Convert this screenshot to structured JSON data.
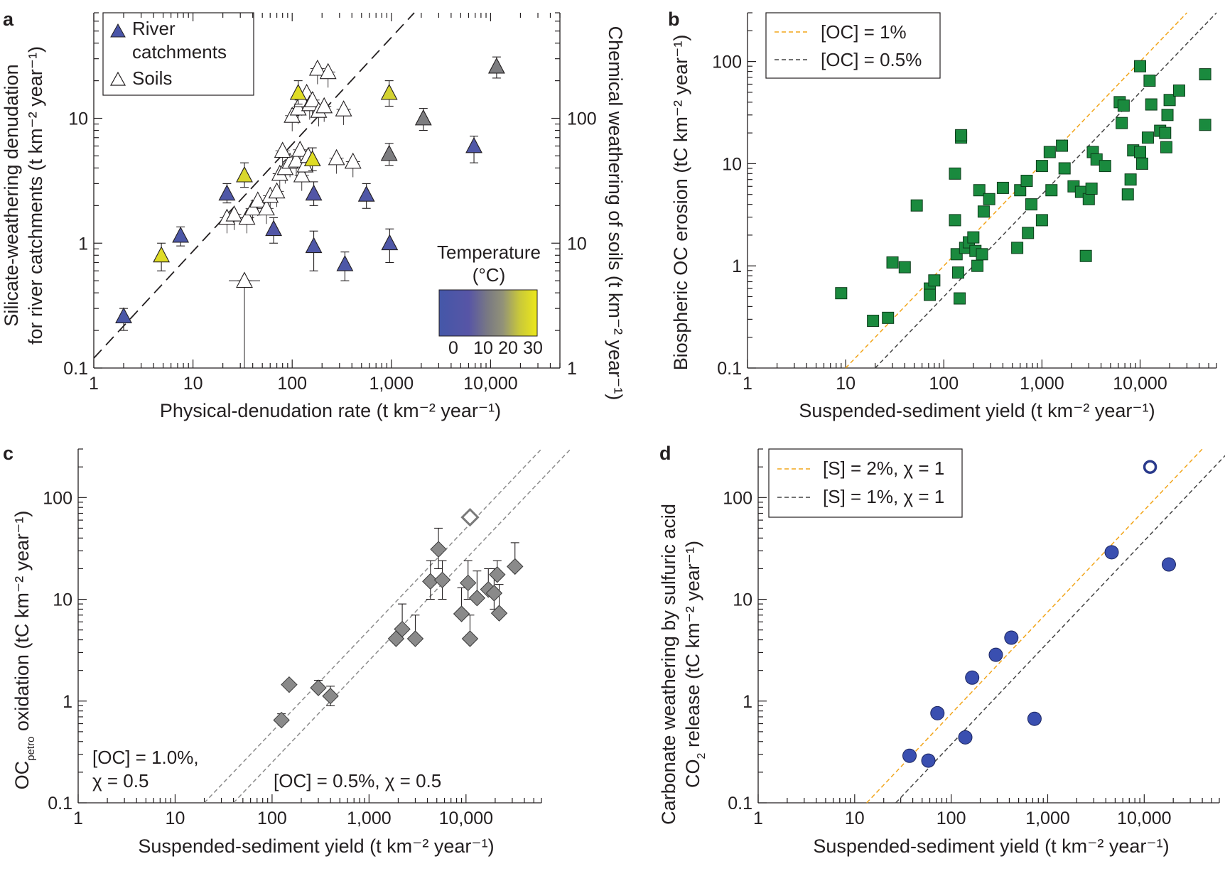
{
  "chart_data": [
    {
      "panel": "a",
      "type": "scatter",
      "xlabel": "Physical-denudation rate (t km⁻² year⁻¹)",
      "ylabel_left": [
        "Silicate-weathering denudation",
        "for river catchments (t km⁻² year⁻¹)"
      ],
      "ylabel_right": "Chemical weathering of soils (t km⁻² year⁻¹)",
      "x_scale": "log",
      "y_scale": "log",
      "xlim": [
        1,
        50000
      ],
      "ylim": [
        0.1,
        70
      ],
      "y2lim": [
        1,
        700
      ],
      "x_tick_labels": [
        "1",
        "10",
        "100",
        "1,000",
        "10,000"
      ],
      "y_tick_labels": [
        "0.1",
        "1",
        "10"
      ],
      "y2_tick_labels": [
        "1",
        "10",
        "100"
      ],
      "legend_position": "top-left",
      "legend": [
        {
          "label": [
            "River",
            "catchments"
          ],
          "marker": "filled triangle"
        },
        {
          "label": [
            "Soils"
          ],
          "marker": "open triangle"
        }
      ],
      "colorbar": {
        "title": [
          "Temperature",
          "(°C)"
        ],
        "tick_labels": [
          "0",
          "10",
          "20",
          "30"
        ],
        "colors": [
          "#4457a8",
          "#4c55a6",
          "#5e56a3",
          "#6f6f8c",
          "#8a8a86",
          "#a9a86a",
          "#cfcf2c",
          "#e6e215"
        ]
      },
      "reference_line": {
        "style": "dashed",
        "x": [
          1,
          1700
        ],
        "y": [
          0.12,
          70
        ]
      },
      "river_catchments": [
        {
          "x": 2,
          "y": 0.26,
          "temp_c": 2,
          "err": [
            0.2,
            0.3
          ]
        },
        {
          "x": 4.8,
          "y": 0.8,
          "temp_c": 28,
          "err": [
            0.6,
            1.0
          ]
        },
        {
          "x": 7.5,
          "y": 1.15,
          "temp_c": 3,
          "err": [
            0.95,
            1.35
          ]
        },
        {
          "x": 22,
          "y": 2.5,
          "temp_c": 4,
          "err": [
            2.1,
            3.0
          ]
        },
        {
          "x": 33,
          "y": 3.5,
          "temp_c": 27,
          "err": [
            2.8,
            4.4
          ]
        },
        {
          "x": 65,
          "y": 1.3,
          "temp_c": 5,
          "err": [
            1.0,
            1.6
          ]
        },
        {
          "x": 115,
          "y": 16,
          "temp_c": 28,
          "err": [
            13,
            20
          ]
        },
        {
          "x": 160,
          "y": 4.7,
          "temp_c": 28,
          "err": [
            3.8,
            5.8
          ]
        },
        {
          "x": 165,
          "y": 2.5,
          "temp_c": 5,
          "err": [
            2.0,
            3.1
          ]
        },
        {
          "x": 165,
          "y": 0.95,
          "temp_c": 4,
          "err": [
            0.6,
            1.25
          ]
        },
        {
          "x": 340,
          "y": 0.68,
          "temp_c": 3,
          "err": [
            0.5,
            0.85
          ]
        },
        {
          "x": 560,
          "y": 2.45,
          "temp_c": 4,
          "err": [
            1.9,
            3.0
          ]
        },
        {
          "x": 950,
          "y": 16,
          "temp_c": 26,
          "err": [
            12.5,
            20
          ]
        },
        {
          "x": 950,
          "y": 5.2,
          "temp_c": 12,
          "err": [
            4.2,
            6.3
          ]
        },
        {
          "x": 960,
          "y": 1.0,
          "temp_c": 4,
          "err": [
            0.7,
            1.3
          ]
        },
        {
          "x": 2100,
          "y": 10,
          "temp_c": 12,
          "err": [
            8,
            12
          ]
        },
        {
          "x": 6800,
          "y": 6,
          "temp_c": 4,
          "err": [
            4.4,
            7.2
          ]
        },
        {
          "x": 11500,
          "y": 26,
          "temp_c": 12,
          "err": [
            21,
            31
          ]
        }
      ],
      "soils_right_axis_units": [
        {
          "x": 33,
          "y": 5
        },
        {
          "x": 22,
          "y": 16
        },
        {
          "x": 26,
          "y": 17
        },
        {
          "x": 35,
          "y": 16
        },
        {
          "x": 40,
          "y": 19
        },
        {
          "x": 45,
          "y": 22
        },
        {
          "x": 55,
          "y": 19
        },
        {
          "x": 60,
          "y": 24
        },
        {
          "x": 70,
          "y": 26
        },
        {
          "x": 75,
          "y": 36
        },
        {
          "x": 85,
          "y": 40
        },
        {
          "x": 95,
          "y": 45
        },
        {
          "x": 110,
          "y": 46
        },
        {
          "x": 120,
          "y": 56
        },
        {
          "x": 125,
          "y": 35
        },
        {
          "x": 135,
          "y": 42
        },
        {
          "x": 145,
          "y": 50
        },
        {
          "x": 80,
          "y": 55
        },
        {
          "x": 100,
          "y": 105
        },
        {
          "x": 115,
          "y": 120
        },
        {
          "x": 125,
          "y": 140
        },
        {
          "x": 140,
          "y": 160
        },
        {
          "x": 150,
          "y": 130
        },
        {
          "x": 160,
          "y": 140
        },
        {
          "x": 185,
          "y": 115
        },
        {
          "x": 210,
          "y": 125
        },
        {
          "x": 180,
          "y": 250
        },
        {
          "x": 230,
          "y": 235
        },
        {
          "x": 330,
          "y": 118
        },
        {
          "x": 280,
          "y": 48
        },
        {
          "x": 410,
          "y": 45
        }
      ]
    },
    {
      "panel": "b",
      "type": "scatter",
      "xlabel": "Suspended-sediment yield (t km⁻² year⁻¹)",
      "ylabel": "Biospheric OC erosion (tC km⁻² year⁻¹)",
      "x_scale": "log",
      "y_scale": "log",
      "xlim": [
        1,
        60000
      ],
      "ylim": [
        0.1,
        300
      ],
      "x_tick_labels": [
        "1",
        "10",
        "100",
        "1,000",
        "10,000"
      ],
      "y_tick_labels": [
        "0.1",
        "1",
        "10",
        "100"
      ],
      "legend_position": "top-left",
      "lines": [
        {
          "label": "[OC] = 1%",
          "fraction": 0.01,
          "color": "#f2a51a",
          "style": "dashed"
        },
        {
          "label": "[OC] = 0.5%",
          "fraction": 0.005,
          "color": "#444444",
          "style": "dashed"
        }
      ],
      "marker_color": "#1a8a3e",
      "points": [
        {
          "x": 9,
          "y": 0.54
        },
        {
          "x": 19,
          "y": 0.29
        },
        {
          "x": 27,
          "y": 0.31
        },
        {
          "x": 30,
          "y": 1.08
        },
        {
          "x": 40,
          "y": 0.97
        },
        {
          "x": 53,
          "y": 3.9
        },
        {
          "x": 72,
          "y": 0.6
        },
        {
          "x": 72,
          "y": 0.52
        },
        {
          "x": 80,
          "y": 0.72
        },
        {
          "x": 130,
          "y": 8
        },
        {
          "x": 130,
          "y": 2.8
        },
        {
          "x": 135,
          "y": 1.3
        },
        {
          "x": 140,
          "y": 0.86
        },
        {
          "x": 145,
          "y": 0.48
        },
        {
          "x": 150,
          "y": 18
        },
        {
          "x": 150,
          "y": 19
        },
        {
          "x": 165,
          "y": 1.5
        },
        {
          "x": 180,
          "y": 1.7
        },
        {
          "x": 200,
          "y": 1.9
        },
        {
          "x": 210,
          "y": 1.4
        },
        {
          "x": 220,
          "y": 1.0
        },
        {
          "x": 230,
          "y": 5.5
        },
        {
          "x": 245,
          "y": 1.3
        },
        {
          "x": 255,
          "y": 3.4
        },
        {
          "x": 290,
          "y": 4.5
        },
        {
          "x": 400,
          "y": 5.8
        },
        {
          "x": 560,
          "y": 1.5
        },
        {
          "x": 600,
          "y": 5.5
        },
        {
          "x": 700,
          "y": 6.8
        },
        {
          "x": 720,
          "y": 2.1
        },
        {
          "x": 780,
          "y": 4.0
        },
        {
          "x": 1000,
          "y": 2.8
        },
        {
          "x": 1000,
          "y": 9.5
        },
        {
          "x": 1200,
          "y": 13
        },
        {
          "x": 1250,
          "y": 5.5
        },
        {
          "x": 1600,
          "y": 15
        },
        {
          "x": 1700,
          "y": 9
        },
        {
          "x": 2100,
          "y": 6
        },
        {
          "x": 2500,
          "y": 5.3
        },
        {
          "x": 2800,
          "y": 1.25
        },
        {
          "x": 3000,
          "y": 4.5
        },
        {
          "x": 3200,
          "y": 5.7
        },
        {
          "x": 3300,
          "y": 13
        },
        {
          "x": 3600,
          "y": 11
        },
        {
          "x": 4400,
          "y": 9.5
        },
        {
          "x": 6200,
          "y": 40
        },
        {
          "x": 6500,
          "y": 25
        },
        {
          "x": 6800,
          "y": 37
        },
        {
          "x": 7500,
          "y": 5
        },
        {
          "x": 8000,
          "y": 7
        },
        {
          "x": 8500,
          "y": 13.5
        },
        {
          "x": 10000,
          "y": 90
        },
        {
          "x": 10000,
          "y": 13
        },
        {
          "x": 10500,
          "y": 10
        },
        {
          "x": 12000,
          "y": 18
        },
        {
          "x": 12500,
          "y": 65
        },
        {
          "x": 13000,
          "y": 38
        },
        {
          "x": 16000,
          "y": 21
        },
        {
          "x": 18000,
          "y": 20
        },
        {
          "x": 18500,
          "y": 14.5
        },
        {
          "x": 19000,
          "y": 30
        },
        {
          "x": 20000,
          "y": 42
        },
        {
          "x": 25000,
          "y": 52
        },
        {
          "x": 46000,
          "y": 75
        },
        {
          "x": 46000,
          "y": 24
        }
      ]
    },
    {
      "panel": "c",
      "type": "scatter",
      "xlabel": "Suspended-sediment yield (t km⁻² year⁻¹)",
      "ylabel": {
        "main": "OC",
        "subscript": "petro",
        "rest": " oxidation (tC km⁻² year⁻¹)"
      },
      "x_scale": "log",
      "y_scale": "log",
      "xlim": [
        1,
        60000
      ],
      "ylim": [
        0.1,
        300
      ],
      "x_tick_labels": [
        "1",
        "10",
        "100",
        "1,000",
        "10,000"
      ],
      "y_tick_labels": [
        "0.1",
        "1",
        "10",
        "100"
      ],
      "lines": [
        {
          "label": [
            "[OC] = 1.0%,",
            "χ = 0.5"
          ],
          "coef": 0.005,
          "color": "#8c8c8c",
          "style": "dashed"
        },
        {
          "label": [
            "[OC] = 0.5%, χ = 0.5"
          ],
          "coef": 0.0025,
          "color": "#8c8c8c",
          "style": "dashed"
        }
      ],
      "marker_color": "#8a8a8a",
      "points": [
        {
          "x": 125,
          "y": 0.65,
          "err_hi": 0.75
        },
        {
          "x": 150,
          "y": 1.45
        },
        {
          "x": 300,
          "y": 1.35,
          "err_hi": 1.6
        },
        {
          "x": 400,
          "y": 1.12,
          "err_lo": 0.9,
          "err_hi": 1.4
        },
        {
          "x": 1900,
          "y": 4.1
        },
        {
          "x": 2200,
          "y": 5.1,
          "err_hi": 9
        },
        {
          "x": 3000,
          "y": 4.1,
          "err_hi": 7
        },
        {
          "x": 4300,
          "y": 15,
          "err_lo": 10,
          "err_hi": 24
        },
        {
          "x": 5200,
          "y": 31,
          "err_lo": 20,
          "err_hi": 50
        },
        {
          "x": 5700,
          "y": 15.5,
          "err_lo": 10,
          "err_hi": 24
        },
        {
          "x": 9000,
          "y": 7.2,
          "err_hi": 13
        },
        {
          "x": 10500,
          "y": 14.5,
          "err_lo": 10,
          "err_hi": 24
        },
        {
          "x": 11000,
          "y": 4.1,
          "err_hi": 7
        },
        {
          "x": 13000,
          "y": 10.3,
          "err_hi": 19
        },
        {
          "x": 17000,
          "y": 12.5,
          "err_hi": 20
        },
        {
          "x": 19500,
          "y": 11.5,
          "err_lo": 8,
          "err_hi": 20
        },
        {
          "x": 21000,
          "y": 17.5,
          "err_hi": 24
        },
        {
          "x": 22000,
          "y": 7.3,
          "err_hi": 14
        },
        {
          "x": 32000,
          "y": 21,
          "err_hi": 36
        }
      ],
      "open_points": [
        {
          "x": 11000,
          "y": 64
        }
      ]
    },
    {
      "panel": "d",
      "type": "scatter",
      "xlabel": "Suspended-sediment yield (t km⁻² year⁻¹)",
      "ylabel": {
        "line1": "Carbonate weathering by sulfuric acid",
        "line2_pre": "CO",
        "line2_sub": "2",
        "line2_post": " release (tC km⁻² year⁻¹)"
      },
      "x_scale": "log",
      "y_scale": "log",
      "xlim": [
        1,
        60000
      ],
      "ylim": [
        0.1,
        300
      ],
      "x_tick_labels": [
        "1",
        "10",
        "100",
        "1,000",
        "10,000"
      ],
      "y_tick_labels": [
        "0.1",
        "1",
        "10",
        "100"
      ],
      "legend_position": "top-left",
      "lines": [
        {
          "label": "[S] = 2%, χ = 1",
          "coef": 0.0075,
          "color": "#f2a51a",
          "style": "dashed"
        },
        {
          "label": "[S] = 1%, χ = 1",
          "coef": 0.00375,
          "color": "#444444",
          "style": "dashed"
        }
      ],
      "marker_color": "#3a4fb0",
      "points": [
        {
          "x": 37,
          "y": 0.29
        },
        {
          "x": 58,
          "y": 0.26
        },
        {
          "x": 72,
          "y": 0.76
        },
        {
          "x": 140,
          "y": 0.44
        },
        {
          "x": 165,
          "y": 1.7
        },
        {
          "x": 290,
          "y": 2.85
        },
        {
          "x": 420,
          "y": 4.2
        },
        {
          "x": 730,
          "y": 0.67
        },
        {
          "x": 4600,
          "y": 29
        },
        {
          "x": 18000,
          "y": 22
        }
      ],
      "open_points": [
        {
          "x": 11500,
          "y": 200
        }
      ]
    }
  ]
}
